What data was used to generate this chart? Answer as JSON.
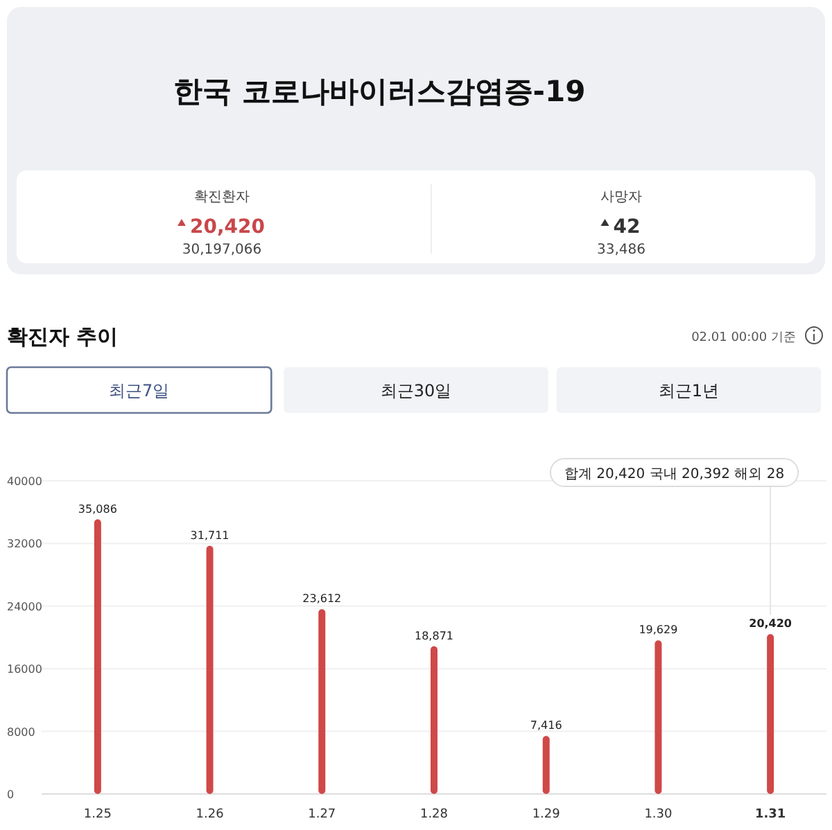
{
  "chart_data": [
    {
      "type": "other",
      "title": "한국 코로나바이러스감염증-19",
      "annotations": [
        "확진환자",
        "20,420",
        "30,197,066",
        "사망자",
        "42",
        "33,486"
      ]
    },
    {
      "type": "bar",
      "title": "확진자 추이",
      "subtitle": "02.01 00:00 기준",
      "categories": [
        "1.25",
        "1.26",
        "1.27",
        "1.28",
        "1.29",
        "1.30",
        "1.31"
      ],
      "values": [
        35086,
        31711,
        23612,
        18871,
        7416,
        19629,
        20420
      ],
      "color": "#d04848",
      "ylim": [
        0,
        40000
      ],
      "yticks": [
        0,
        8000,
        16000,
        24000,
        32000,
        40000
      ],
      "grid": "y",
      "value_labels": [
        "35,086",
        "31,711",
        "23,612",
        "18,871",
        "7,416",
        "19,629",
        "20,420"
      ],
      "annotations": [
        "최근7일",
        "최근30일",
        "최근1년",
        "합계 20,420 국내 20,392 해외 28"
      ]
    }
  ]
}
